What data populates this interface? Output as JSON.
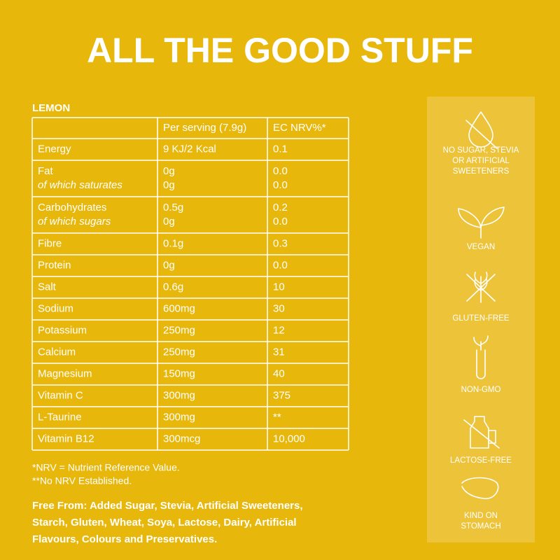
{
  "header": {
    "title": "ALL THE GOOD STUFF"
  },
  "table": {
    "flavour": "LEMON",
    "header": [
      "Per serving (7.9g)",
      "EC NRV%*"
    ],
    "rows": [
      [
        [
          "Energy"
        ],
        [
          "9 KJ/2 Kcal"
        ],
        [
          "0.1"
        ]
      ],
      [
        [
          "Fat",
          "of which saturates"
        ],
        [
          "0g",
          "0g"
        ],
        [
          "0.0",
          "0.0"
        ]
      ],
      [
        [
          "Carbohydrates",
          "of which sugars"
        ],
        [
          "0.5g",
          "0g"
        ],
        [
          "0.2",
          "0.0"
        ]
      ],
      [
        [
          "Fibre"
        ],
        [
          "0.1g"
        ],
        [
          "0.3"
        ]
      ],
      [
        [
          "Protein"
        ],
        [
          "0g"
        ],
        [
          "0.0"
        ]
      ],
      [
        [
          "Salt"
        ],
        [
          "0.6g"
        ],
        [
          "10"
        ]
      ],
      [
        [
          "Sodium"
        ],
        [
          "600mg"
        ],
        [
          "30"
        ]
      ],
      [
        [
          "Potassium"
        ],
        [
          "250mg"
        ],
        [
          "12"
        ]
      ],
      [
        [
          "Calcium"
        ],
        [
          "250mg"
        ],
        [
          "31"
        ]
      ],
      [
        [
          "Magnesium"
        ],
        [
          "150mg"
        ],
        [
          "40"
        ]
      ],
      [
        [
          "Vitamin C"
        ],
        [
          "300mg"
        ],
        [
          "375"
        ]
      ],
      [
        [
          "L-Taurine"
        ],
        [
          "300mg"
        ],
        [
          "**"
        ]
      ],
      [
        [
          "Vitamin B12"
        ],
        [
          "300mcg"
        ],
        [
          "10,000"
        ]
      ]
    ]
  },
  "footnotes": [
    "*NRV = Nutrient Reference Value.",
    "**No NRV Established."
  ],
  "free_from": [
    "Free From: Added Sugar, Stevia, Artificial Sweeteners,",
    "Starch, Gluten, Wheat, Soya, Lactose, Dairy, Artificial",
    "Flavours, Colours and Preservatives."
  ],
  "badges": [
    [
      "NO SUGAR, STEVIA",
      "OR ARTIFICIAL",
      "SWEETENERS"
    ],
    [
      "VEGAN"
    ],
    [
      "GLUTEN-FREE"
    ],
    [
      "NON-GMO"
    ],
    [
      "LACTOSE-FREE"
    ],
    [
      "KIND ON",
      "STOMACH"
    ]
  ]
}
